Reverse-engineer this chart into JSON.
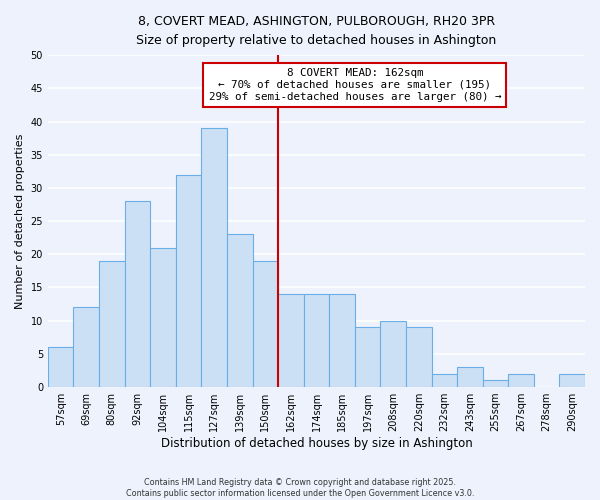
{
  "title": "8, COVERT MEAD, ASHINGTON, PULBOROUGH, RH20 3PR",
  "subtitle": "Size of property relative to detached houses in Ashington",
  "xlabel": "Distribution of detached houses by size in Ashington",
  "ylabel": "Number of detached properties",
  "bin_labels": [
    "57sqm",
    "69sqm",
    "80sqm",
    "92sqm",
    "104sqm",
    "115sqm",
    "127sqm",
    "139sqm",
    "150sqm",
    "162sqm",
    "174sqm",
    "185sqm",
    "197sqm",
    "208sqm",
    "220sqm",
    "232sqm",
    "243sqm",
    "255sqm",
    "267sqm",
    "278sqm",
    "290sqm"
  ],
  "bar_heights": [
    6,
    12,
    19,
    28,
    21,
    32,
    39,
    23,
    19,
    14,
    14,
    14,
    9,
    10,
    9,
    2,
    3,
    1,
    2,
    0,
    2
  ],
  "highlight_index": 9,
  "bar_color": "#cce0f5",
  "bar_edge_color": "#6aaee8",
  "vline_color": "#cc0000",
  "annotation_title": "8 COVERT MEAD: 162sqm",
  "annotation_line1": "← 70% of detached houses are smaller (195)",
  "annotation_line2": "29% of semi-detached houses are larger (80) →",
  "annotation_box_edge": "#cc0000",
  "ylim": [
    0,
    50
  ],
  "yticks": [
    0,
    5,
    10,
    15,
    20,
    25,
    30,
    35,
    40,
    45,
    50
  ],
  "bg_color": "#edf2fc",
  "grid_color": "#d0ddf0",
  "footer_line1": "Contains HM Land Registry data © Crown copyright and database right 2025.",
  "footer_line2": "Contains public sector information licensed under the Open Government Licence v3.0."
}
